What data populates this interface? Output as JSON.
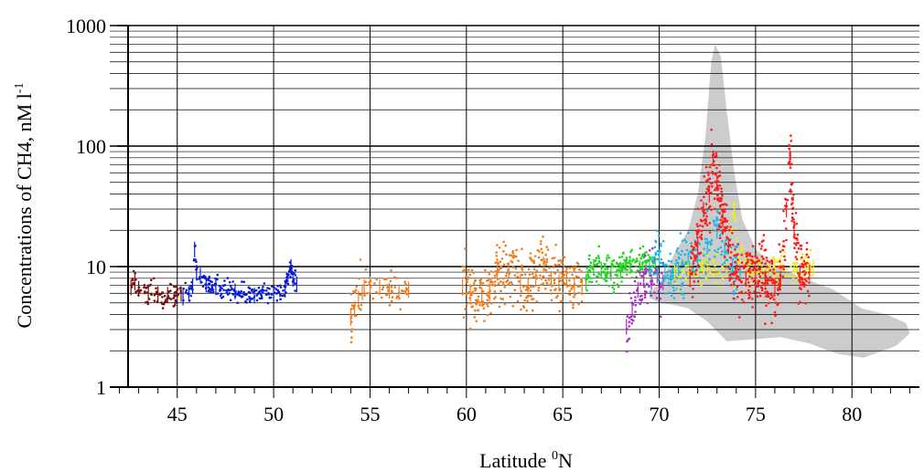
{
  "chart_data": {
    "type": "scatter",
    "title": "",
    "xlabel": {
      "pre": "Latitude ",
      "sup": "0",
      "post": "N"
    },
    "ylabel": {
      "pre": "Concentrations of CH4, nM l",
      "sup": "-1"
    },
    "xlim": [
      41.5,
      83.5
    ],
    "ylim": [
      1,
      1000
    ],
    "y_scale": "log",
    "grid": true,
    "x_ticks": [
      45,
      50,
      55,
      60,
      65,
      70,
      75,
      80
    ],
    "x_tick_labels": [
      "45",
      "50",
      "55",
      "60",
      "65",
      "70",
      "75",
      "80"
    ],
    "y_ticks": [
      1,
      10,
      100,
      1000
    ],
    "y_tick_labels": [
      "1",
      "10",
      "100",
      "1000"
    ],
    "shaded_region": {
      "color": "#cccccc",
      "boundary": [
        [
          69.5,
          6
        ],
        [
          70.2,
          8
        ],
        [
          70.8,
          13
        ],
        [
          71.5,
          20
        ],
        [
          72,
          40
        ],
        [
          72.4,
          120
        ],
        [
          72.7,
          500
        ],
        [
          72.9,
          700
        ],
        [
          73.2,
          550
        ],
        [
          73.5,
          200
        ],
        [
          73.9,
          60
        ],
        [
          74.3,
          25
        ],
        [
          75,
          14
        ],
        [
          76,
          10
        ],
        [
          77.5,
          8
        ],
        [
          79,
          6.5
        ],
        [
          80.5,
          4.5
        ],
        [
          81.8,
          4
        ],
        [
          82.8,
          3.4
        ],
        [
          83,
          2.8
        ],
        [
          82.3,
          2.2
        ],
        [
          80.6,
          1.75
        ],
        [
          79.2,
          1.9
        ],
        [
          77.8,
          2.3
        ],
        [
          76.3,
          2.6
        ],
        [
          75,
          2.5
        ],
        [
          73.5,
          2.4
        ],
        [
          72.5,
          3.5
        ],
        [
          71.5,
          4.5
        ],
        [
          70.8,
          4.8
        ],
        [
          70,
          5
        ],
        [
          69.5,
          5.5
        ]
      ]
    },
    "series": [
      {
        "color": "#7a1010",
        "segments": [
          {
            "x0": 42.6,
            "x1": 45.2,
            "pts": [
              [
                42.6,
                6.8
              ],
              [
                42.8,
                7.5
              ],
              [
                43.0,
                6.6
              ],
              [
                43.5,
                6.2
              ],
              [
                44.0,
                6.0
              ],
              [
                44.5,
                5.9
              ],
              [
                45.2,
                6.0
              ]
            ],
            "spread": 0.05,
            "n": 90
          }
        ]
      },
      {
        "color": "#0a1ed8",
        "segments": [
          {
            "x0": 45.3,
            "x1": 51.2,
            "pts": [
              [
                45.3,
                5.6
              ],
              [
                45.6,
                6.0
              ],
              [
                45.8,
                7.0
              ],
              [
                45.9,
                14
              ],
              [
                46.0,
                9
              ],
              [
                46.2,
                8.5
              ],
              [
                46.5,
                7.2
              ],
              [
                47,
                6.8
              ],
              [
                48,
                6.3
              ],
              [
                49,
                5.8
              ],
              [
                50,
                6.0
              ],
              [
                50.6,
                6.5
              ],
              [
                50.9,
                10
              ],
              [
                51.0,
                8
              ],
              [
                51.2,
                7.2
              ]
            ],
            "spread": 0.04,
            "n": 230
          }
        ]
      },
      {
        "color": "#f07c1e",
        "segments": [
          {
            "x0": 54.0,
            "x1": 54.6,
            "pts": [
              [
                54.0,
                3.8
              ],
              [
                54.2,
                4.5
              ],
              [
                54.4,
                5.5
              ],
              [
                54.6,
                6.2
              ]
            ],
            "spread": 0.12,
            "n": 25
          },
          {
            "x0": 54.7,
            "x1": 57.0,
            "pts": [
              [
                54.7,
                6.8
              ],
              [
                55.0,
                7.2
              ],
              [
                55.5,
                6.8
              ],
              [
                56.0,
                6.4
              ],
              [
                56.5,
                6.2
              ],
              [
                57.0,
                6.5
              ]
            ],
            "spread": 0.07,
            "n": 50
          },
          {
            "x0": 59.8,
            "x1": 66.0,
            "pts": [
              [
                59.8,
                6.8
              ],
              [
                60.2,
                6.0
              ],
              [
                60.8,
                5.8
              ],
              [
                61.2,
                6.0
              ],
              [
                61.6,
                9.0
              ],
              [
                62.2,
                9.5
              ],
              [
                62.8,
                7.5
              ],
              [
                63.2,
                7.0
              ],
              [
                63.6,
                8.0
              ],
              [
                64.0,
                10.5
              ],
              [
                64.4,
                8.0
              ],
              [
                64.8,
                7.5
              ],
              [
                65.2,
                8.5
              ],
              [
                65.6,
                7.0
              ],
              [
                66.0,
                6.8
              ]
            ],
            "spread": 0.12,
            "n": 340
          }
        ]
      },
      {
        "color": "#22d622",
        "segments": [
          {
            "x0": 66.2,
            "x1": 69.8,
            "pts": [
              [
                66.2,
                7.5
              ],
              [
                66.6,
                10
              ],
              [
                67,
                9.5
              ],
              [
                67.5,
                9
              ],
              [
                68,
                9.5
              ],
              [
                68.5,
                10.2
              ],
              [
                69,
                9.8
              ],
              [
                69.5,
                10.5
              ],
              [
                69.8,
                10
              ]
            ],
            "spread": 0.07,
            "n": 200
          }
        ]
      },
      {
        "color": "#b02cc8",
        "segments": [
          {
            "x0": 68.3,
            "x1": 70.2,
            "pts": [
              [
                68.3,
                3.2
              ],
              [
                68.6,
                4.5
              ],
              [
                68.9,
                6.5
              ],
              [
                69.2,
                8
              ],
              [
                69.6,
                7.5
              ],
              [
                69.9,
                8.5
              ],
              [
                70.2,
                7.5
              ]
            ],
            "spread": 0.12,
            "n": 90
          }
        ]
      },
      {
        "color": "#18b8e6",
        "segments": [
          {
            "x0": 69.5,
            "x1": 74.2,
            "pts": [
              [
                69.5,
                10
              ],
              [
                70,
                12
              ],
              [
                70.3,
                9
              ],
              [
                70.6,
                8
              ],
              [
                71,
                9.5
              ],
              [
                71.5,
                11
              ],
              [
                72,
                12
              ],
              [
                72.5,
                15
              ],
              [
                73,
                20
              ],
              [
                73.4,
                14
              ],
              [
                73.8,
                10
              ],
              [
                74.2,
                9
              ]
            ],
            "spread": 0.11,
            "n": 220
          }
        ]
      },
      {
        "color": "#eeee10",
        "segments": [
          {
            "x0": 70.8,
            "x1": 78.0,
            "pts": [
              [
                70.8,
                9
              ],
              [
                71.5,
                9.5
              ],
              [
                72.5,
                10
              ],
              [
                73.5,
                9.5
              ],
              [
                73.9,
                30
              ],
              [
                74.1,
                12
              ],
              [
                75,
                9.5
              ],
              [
                76,
                9.5
              ],
              [
                77,
                9.5
              ],
              [
                78,
                10
              ]
            ],
            "spread": 0.06,
            "n": 200
          }
        ]
      },
      {
        "color": "#ff1a1a",
        "segments": [
          {
            "x0": 71.6,
            "x1": 77.8,
            "pts": [
              [
                71.6,
                8
              ],
              [
                72.0,
                15
              ],
              [
                72.3,
                30
              ],
              [
                72.6,
                40
              ],
              [
                72.8,
                80
              ],
              [
                73.0,
                50
              ],
              [
                73.3,
                25
              ],
              [
                73.6,
                15
              ],
              [
                74.0,
                9
              ],
              [
                74.5,
                8
              ],
              [
                75.0,
                9
              ],
              [
                75.5,
                8
              ],
              [
                76.0,
                7
              ],
              [
                76.3,
                8
              ],
              [
                76.6,
                30
              ],
              [
                76.8,
                80
              ],
              [
                77.0,
                20
              ],
              [
                77.3,
                9
              ],
              [
                77.8,
                9
              ]
            ],
            "spread": 0.14,
            "n": 520
          }
        ]
      }
    ]
  }
}
